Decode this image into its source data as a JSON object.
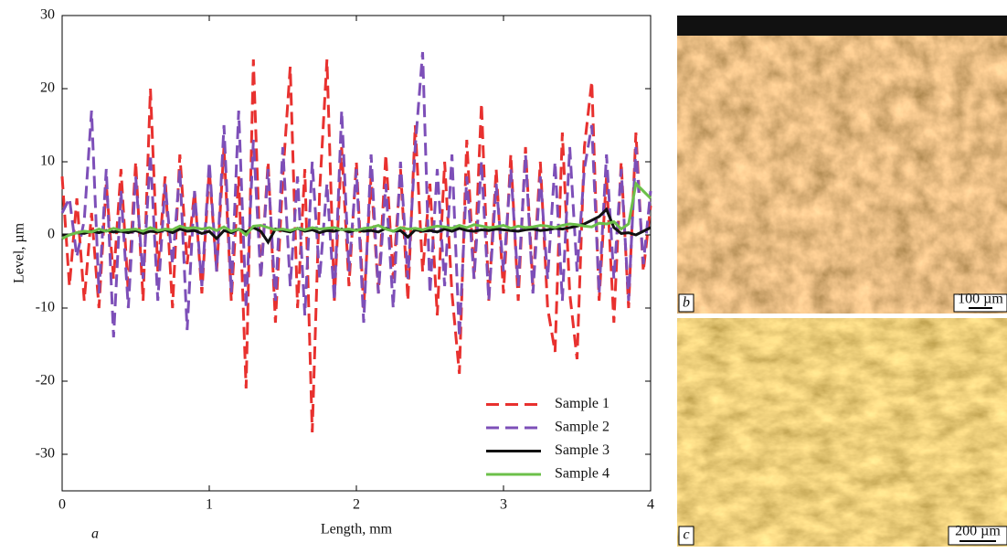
{
  "chart_data": {
    "type": "line",
    "xlabel": "Length, mm",
    "ylabel": "Level, µm",
    "panel_label": "a",
    "xlim": [
      0,
      4
    ],
    "ylim": [
      -35,
      30
    ],
    "xticks": [
      0,
      1,
      2,
      3,
      4
    ],
    "yticks": [
      -30,
      -20,
      -10,
      0,
      10,
      20,
      30
    ],
    "legend": "lower right",
    "x": [
      0,
      0.05,
      0.1,
      0.15,
      0.2,
      0.25,
      0.3,
      0.35,
      0.4,
      0.45,
      0.5,
      0.55,
      0.6,
      0.65,
      0.7,
      0.75,
      0.8,
      0.85,
      0.9,
      0.95,
      1,
      1.05,
      1.1,
      1.15,
      1.2,
      1.25,
      1.3,
      1.35,
      1.4,
      1.45,
      1.5,
      1.55,
      1.6,
      1.65,
      1.7,
      1.75,
      1.8,
      1.85,
      1.9,
      1.95,
      2,
      2.05,
      2.1,
      2.15,
      2.2,
      2.25,
      2.3,
      2.35,
      2.4,
      2.45,
      2.5,
      2.55,
      2.6,
      2.65,
      2.7,
      2.75,
      2.8,
      2.85,
      2.9,
      2.95,
      3,
      3.05,
      3.1,
      3.15,
      3.2,
      3.25,
      3.3,
      3.35,
      3.4,
      3.45,
      3.5,
      3.55,
      3.6,
      3.65,
      3.7,
      3.75,
      3.8,
      3.85,
      3.9,
      3.95,
      4
    ],
    "series": [
      {
        "name": "Sample 1",
        "color": "#e8312f",
        "dashed": true,
        "values": [
          8,
          -7,
          5,
          -9,
          3,
          -10,
          7,
          -6,
          9,
          -8,
          10,
          -9,
          20,
          -5,
          8,
          -10,
          11,
          -4,
          6,
          -8,
          9,
          -5,
          12,
          -9,
          8,
          -21,
          24,
          -6,
          10,
          -12,
          8,
          23,
          -10,
          9,
          -27,
          6,
          24,
          -9,
          12,
          -7,
          10,
          -10,
          8,
          -8,
          11,
          -6,
          9,
          -9,
          15,
          -5,
          7,
          -11,
          10,
          -8,
          -19,
          13,
          -6,
          18,
          -9,
          9,
          -8,
          11,
          -9,
          12,
          -7,
          10,
          -10,
          -16,
          14,
          -8,
          -17,
          12,
          21,
          -9,
          8,
          -12,
          10,
          -10,
          14,
          -5,
          4
        ]
      },
      {
        "name": "Sample 2",
        "color": "#7d4fb8",
        "dashed": true,
        "values": [
          3,
          5,
          -3,
          2,
          17,
          -8,
          9,
          -14,
          6,
          -10,
          8,
          -6,
          11,
          -9,
          7,
          -4,
          9,
          -13,
          6,
          -7,
          10,
          -5,
          15,
          -8,
          17,
          -10,
          13,
          -6,
          9,
          -9,
          12,
          -7,
          8,
          -11,
          10,
          -6,
          7,
          -9,
          17,
          -5,
          9,
          -12,
          11,
          -8,
          7,
          -10,
          10,
          -6,
          12,
          25,
          -8,
          9,
          -7,
          11,
          -14,
          8,
          -6,
          10,
          -9,
          7,
          -5,
          9,
          -7,
          11,
          -8,
          8,
          -6,
          10,
          -9,
          12,
          -5,
          9,
          15,
          -8,
          11,
          -6,
          9,
          -9,
          12,
          -4,
          6
        ]
      },
      {
        "name": "Sample 3",
        "color": "#111111",
        "dashed": false,
        "values": [
          0,
          0,
          0.3,
          0.2,
          0.5,
          0.3,
          0.6,
          0.4,
          0.5,
          0.3,
          0.6,
          0.2,
          0.5,
          0.4,
          0.7,
          0.3,
          0.8,
          0.5,
          0.6,
          0.2,
          0.5,
          -0.5,
          0.6,
          0.3,
          0.8,
          0.4,
          1,
          0.5,
          -1,
          0.8,
          0.6,
          0.4,
          0.9,
          0.5,
          0.7,
          0.3,
          0.6,
          0.5,
          0.8,
          0.4,
          0.7,
          0.5,
          0.6,
          0.4,
          0.9,
          0.5,
          0.6,
          -0.3,
          0.7,
          0.5,
          0.6,
          0.4,
          0.8,
          0.5,
          0.9,
          0.6,
          0.5,
          0.7,
          0.6,
          0.8,
          0.7,
          0.6,
          0.5,
          0.7,
          0.8,
          0.6,
          0.7,
          0.9,
          0.8,
          1,
          1.2,
          1.5,
          2,
          2.5,
          3.5,
          1,
          0.2,
          0.3,
          0,
          0.5,
          1
        ]
      },
      {
        "name": "Sample 4",
        "color": "#6cc04a",
        "dashed": false,
        "values": [
          -0.5,
          0,
          0.3,
          0.5,
          0.4,
          0.8,
          0.5,
          0.9,
          0.6,
          0.7,
          0.8,
          0.5,
          1,
          0.6,
          0.8,
          0.7,
          1.2,
          0.9,
          1,
          0.8,
          1,
          0.6,
          1.1,
          0.5,
          0.8,
          0,
          1.2,
          1.3,
          1,
          0.7,
          0.8,
          0.6,
          0.9,
          0.7,
          1,
          0.8,
          0.9,
          1,
          0.7,
          0.8,
          0.6,
          0.9,
          1,
          1.3,
          0.8,
          0.5,
          1,
          0.8,
          0.9,
          0.7,
          1,
          1.2,
          1.1,
          0.9,
          1.3,
          1,
          1.4,
          1.2,
          1,
          1.1,
          1.3,
          0.9,
          1.2,
          1,
          1.1,
          1.3,
          1.2,
          1,
          1.3,
          1.5,
          1.4,
          1.2,
          1.1,
          1.6,
          1.5,
          1.8,
          0.8,
          1.5,
          7,
          6,
          5
        ]
      }
    ]
  },
  "images": [
    {
      "label": "b",
      "scale": "100 µm"
    },
    {
      "label": "c",
      "scale": "200 µm"
    }
  ]
}
